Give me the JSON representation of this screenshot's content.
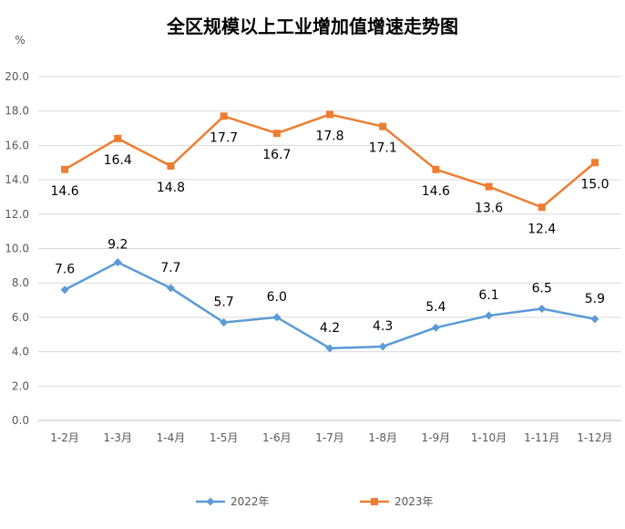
{
  "chart_data": {
    "type": "line",
    "title": "全区规模以上工业增加值增速走势图",
    "ylabel": "%",
    "ylim": [
      0,
      20
    ],
    "yticks": [
      "0.0",
      "2.0",
      "4.0",
      "6.0",
      "8.0",
      "10.0",
      "12.0",
      "14.0",
      "16.0",
      "18.0",
      "20.0"
    ],
    "categories": [
      "1-2月",
      "1-3月",
      "1-4月",
      "1-5月",
      "1-6月",
      "1-7月",
      "1-8月",
      "1-9月",
      "1-10月",
      "1-11月",
      "1-12月"
    ],
    "series": [
      {
        "name": "2022年",
        "color": "#5B9BD5",
        "marker": "diamond",
        "values": [
          7.6,
          9.2,
          7.7,
          5.7,
          6.0,
          4.2,
          4.3,
          5.4,
          6.1,
          6.5,
          5.9
        ],
        "labels": [
          "7.6",
          "9.2",
          "7.7",
          "5.7",
          "6.0",
          "4.2",
          "4.3",
          "5.4",
          "6.1",
          "6.5",
          "5.9"
        ]
      },
      {
        "name": "2023年",
        "color": "#ED7D31",
        "marker": "square",
        "values": [
          14.6,
          16.4,
          14.8,
          17.7,
          16.7,
          17.8,
          17.1,
          14.6,
          13.6,
          12.4,
          15.0
        ],
        "labels": [
          "14.6",
          "16.4",
          "14.8",
          "17.7",
          "16.7",
          "17.8",
          "17.1",
          "14.6",
          "13.6",
          "12.4",
          "15.0"
        ]
      }
    ],
    "grid": true,
    "legend": "bottom"
  }
}
